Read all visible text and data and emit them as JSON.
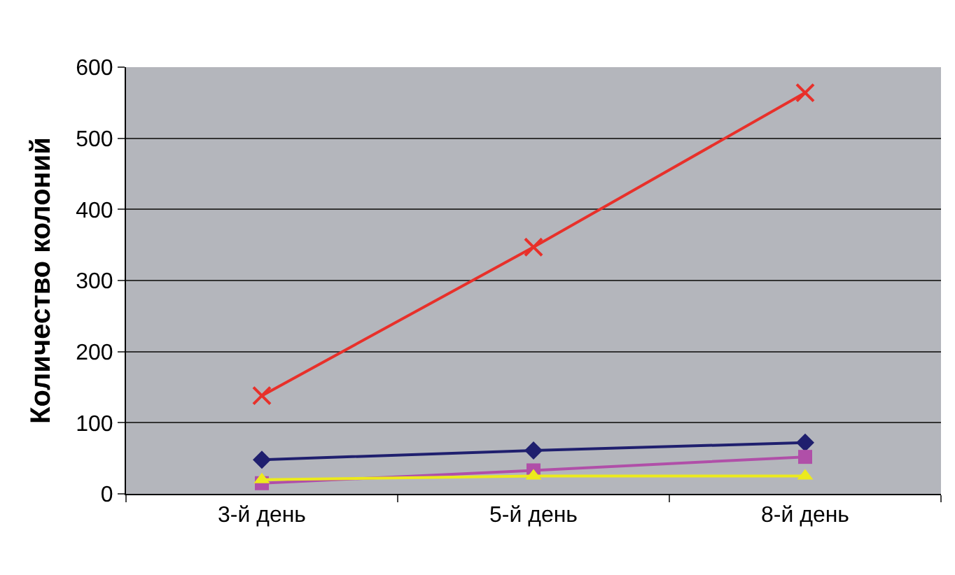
{
  "chart_data": {
    "type": "line",
    "ylabel": "Количество колоний",
    "categories": [
      "3-й день",
      "5-й день",
      "8-й день"
    ],
    "series": [
      {
        "color": "#1f1f6e",
        "marker": "diamond",
        "values": [
          48,
          61,
          72
        ]
      },
      {
        "color": "#b04fa8",
        "marker": "square",
        "values": [
          15,
          33,
          52
        ]
      },
      {
        "color": "#ecea1c",
        "marker": "triangle",
        "values": [
          20,
          25,
          25
        ]
      },
      {
        "color": "#e8302a",
        "marker": "cross",
        "values": [
          138,
          347,
          564
        ]
      }
    ],
    "ylim": [
      0,
      600
    ],
    "yticks": [
      0,
      100,
      200,
      300,
      400,
      500,
      600
    ],
    "grid": "y"
  }
}
